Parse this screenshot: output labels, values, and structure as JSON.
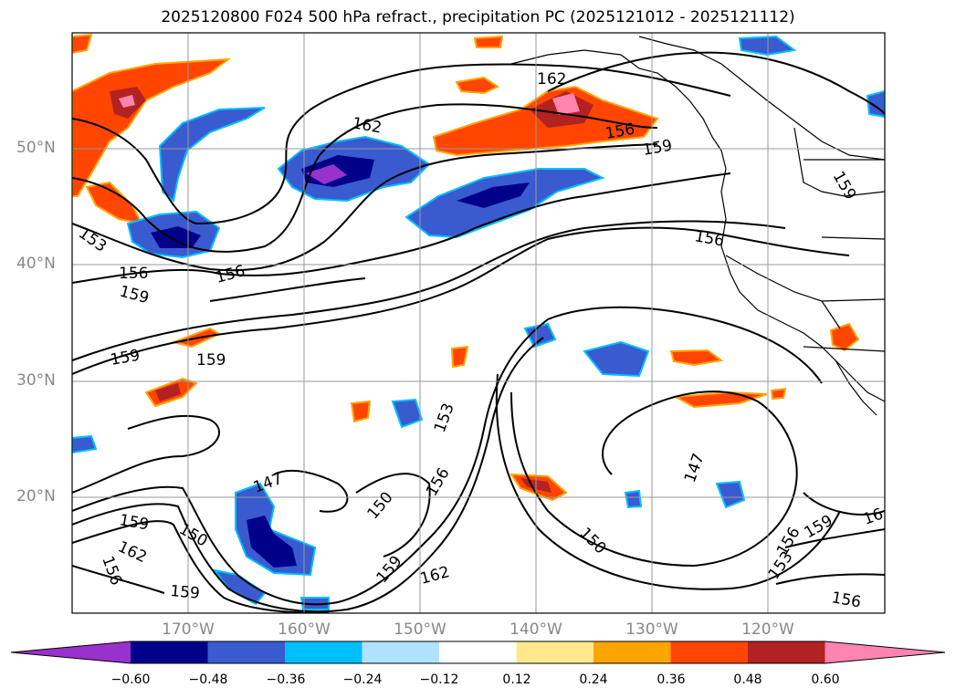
{
  "title": "2025120800 F024 500 hPa refract., precipitation PC (2025121012 - 2025121112)",
  "latitude_labels": [
    "50°N",
    "40°N",
    "30°N",
    "20°N"
  ],
  "longitude_labels": [
    "170°W",
    "160°W",
    "150°W",
    "140°W",
    "130°W",
    "120°W"
  ],
  "contour_labels": [
    "162",
    "162",
    "156",
    "159",
    "153",
    "156",
    "159",
    "156",
    "156",
    "159",
    "159",
    "147",
    "150",
    "153",
    "156",
    "150",
    "159",
    "162",
    "150",
    "159",
    "162",
    "156",
    "159",
    "147",
    "159",
    "153",
    "156",
    "16",
    "159",
    "156"
  ],
  "colorbar": {
    "ticks": [
      "−0.60",
      "−0.48",
      "−0.36",
      "−0.24",
      "−0.12",
      "0.12",
      "0.24",
      "0.36",
      "0.48",
      "0.60"
    ],
    "colors": [
      "#9932cc",
      "#00008b",
      "#3a5bd0",
      "#00bfff",
      "#b0e2ff",
      "#ffffff",
      "#ffe98c",
      "#ffa500",
      "#ff4500",
      "#b22222",
      "#ff85b0"
    ]
  }
}
